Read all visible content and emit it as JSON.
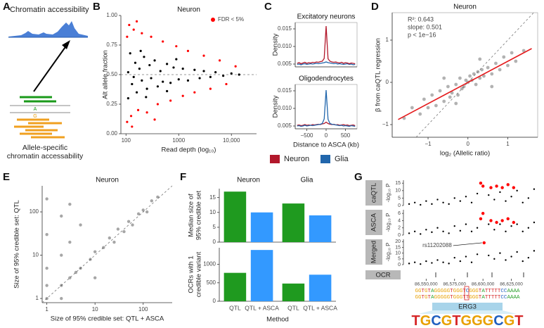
{
  "panel_labels": [
    "A",
    "B",
    "C",
    "D",
    "E",
    "F",
    "G"
  ],
  "diagram": {
    "title": "Chromatin accessibility",
    "alleles": [
      "A",
      "G"
    ],
    "caption": [
      "Allele-specific",
      "chromatin accessability"
    ]
  },
  "chart_data": [
    {
      "type": "scatter",
      "title": "Neuron",
      "xlabel": "Read depth (log₁₀)",
      "ylabel": "Alt allele fraction",
      "xlog": true,
      "xlim": [
        80,
        30000
      ],
      "xticks": [
        100,
        1000,
        {
          "value": 10000,
          "label": "10,000"
        }
      ],
      "ylim": [
        0,
        1
      ],
      "yticks": [
        {
          "value": 0,
          "label": "0.00"
        },
        0.25,
        {
          "value": 0.5,
          "label": "0.50"
        },
        0.75,
        {
          "value": 1,
          "label": "1.00"
        }
      ],
      "reference_line": 0.5,
      "series": [
        {
          "color": "#000000",
          "opacity": 1,
          "x": [
            110,
            120,
            130,
            150,
            160,
            180,
            200,
            220,
            250,
            280,
            300,
            350,
            400,
            450,
            500,
            600,
            700,
            800,
            1000,
            1200,
            1500,
            2000,
            2500,
            3000,
            4000,
            5000,
            7000,
            10000,
            14000,
            110,
            140,
            190,
            240,
            600,
            900
          ],
          "values": [
            0.3,
            0.68,
            0.42,
            0.6,
            0.35,
            0.55,
            0.45,
            0.65,
            0.38,
            0.58,
            0.47,
            0.62,
            0.4,
            0.53,
            0.44,
            0.59,
            0.43,
            0.56,
            0.46,
            0.55,
            0.45,
            0.54,
            0.47,
            0.53,
            0.48,
            0.52,
            0.49,
            0.51,
            0.5,
            0.52,
            0.48,
            0.7,
            0.31,
            0.36,
            0.63
          ]
        },
        {
          "name": "FDR < 5%",
          "color": "#ff0000",
          "opacity": 1,
          "x": [
            105,
            115,
            125,
            140,
            170,
            200,
            250,
            300,
            400,
            500,
            700,
            900,
            1200,
            1500,
            2000,
            3000,
            4000,
            6000,
            8000,
            12000,
            105,
            130,
            160,
            350
          ],
          "values": [
            0.1,
            0.92,
            0.15,
            0.88,
            0.2,
            0.85,
            0.18,
            0.82,
            0.25,
            0.78,
            0.28,
            0.74,
            0.32,
            0.7,
            0.35,
            0.66,
            0.38,
            0.62,
            0.42,
            0.57,
            0.82,
            0.06,
            0.95,
            0.12
          ]
        }
      ]
    },
    {
      "type": "line",
      "title": "Excitatory neurons",
      "ylabel": "Density",
      "xlim": [
        -800,
        800
      ],
      "ylim": [
        0.0042,
        0.0168
      ],
      "yticks": [
        0.005,
        {
          "value": 0.01,
          "label": "0.010"
        },
        0.015
      ],
      "x": [
        -750,
        -700,
        -650,
        -600,
        -550,
        -500,
        -450,
        -400,
        -350,
        -300,
        -250,
        -200,
        -150,
        -100,
        -50,
        0,
        50,
        100,
        150,
        200,
        250,
        300,
        350,
        400,
        450,
        500,
        550,
        600,
        650,
        700,
        750
      ],
      "series": [
        {
          "color": "#2166ac",
          "values": [
            0.0049,
            0.005,
            0.0048,
            0.005,
            0.0051,
            0.0049,
            0.005,
            0.0051,
            0.005,
            0.0051,
            0.0052,
            0.0051,
            0.0052,
            0.0053,
            0.0054,
            0.0056,
            0.0054,
            0.0053,
            0.0052,
            0.0051,
            0.0052,
            0.005,
            0.0051,
            0.005,
            0.0049,
            0.005,
            0.0051,
            0.0049,
            0.005,
            0.0048,
            0.0049
          ]
        },
        {
          "color": "#b2182b",
          "values": [
            0.0052,
            0.0054,
            0.0051,
            0.0053,
            0.0055,
            0.0052,
            0.0054,
            0.0053,
            0.0055,
            0.0054,
            0.0056,
            0.0055,
            0.0057,
            0.0058,
            0.0066,
            0.0158,
            0.0065,
            0.0058,
            0.0056,
            0.0055,
            0.0056,
            0.0054,
            0.0053,
            0.0055,
            0.0052,
            0.0054,
            0.0053,
            0.0051,
            0.0053,
            0.0052,
            0.0051
          ]
        }
      ]
    },
    {
      "type": "line",
      "title": "Oligodendrocytes",
      "ylabel": "Density",
      "xlabel": "Distance to ASCA (kb)",
      "xlim": [
        -800,
        800
      ],
      "xticks": [
        {
          "value": -500,
          "label": "−500"
        },
        0,
        500
      ],
      "ylim": [
        0.0042,
        0.0168
      ],
      "yticks": [
        0.005,
        {
          "value": 0.01,
          "label": "0.010"
        },
        0.015
      ],
      "legend": "bottom",
      "x": [
        -750,
        -700,
        -650,
        -600,
        -550,
        -500,
        -450,
        -400,
        -350,
        -300,
        -250,
        -200,
        -150,
        -100,
        -50,
        0,
        50,
        100,
        150,
        200,
        250,
        300,
        350,
        400,
        450,
        500,
        550,
        600,
        650,
        700,
        750
      ],
      "series": [
        {
          "name": "Neuron",
          "color": "#b2182b",
          "values": [
            0.0052,
            0.0053,
            0.0051,
            0.0052,
            0.0054,
            0.0052,
            0.0053,
            0.0052,
            0.0054,
            0.0053,
            0.0054,
            0.0055,
            0.0054,
            0.0056,
            0.0057,
            0.0061,
            0.0057,
            0.0055,
            0.0054,
            0.0055,
            0.0053,
            0.0054,
            0.0052,
            0.0053,
            0.0054,
            0.0052,
            0.0053,
            0.0051,
            0.0052,
            0.0053,
            0.0051
          ]
        },
        {
          "name": "Glia",
          "color": "#2166ac",
          "values": [
            0.005,
            0.0051,
            0.0049,
            0.005,
            0.0052,
            0.005,
            0.0051,
            0.0052,
            0.0051,
            0.0052,
            0.0053,
            0.0054,
            0.0055,
            0.0057,
            0.007,
            0.0152,
            0.0069,
            0.0057,
            0.0055,
            0.0054,
            0.0053,
            0.0052,
            0.0051,
            0.0052,
            0.005,
            0.0051,
            0.005,
            0.0049,
            0.0051,
            0.005,
            0.0049
          ]
        }
      ]
    },
    {
      "type": "scatter",
      "title": "Neuron",
      "xlabel": "log₂ (Allelic ratio)",
      "ylabel": "β from caQTL regression",
      "xlim": [
        -1.9,
        1.75
      ],
      "xticks": [
        {
          "value": -1,
          "label": "−1"
        },
        0,
        1
      ],
      "ylim": [
        -1.3,
        1.65
      ],
      "yticks": [
        {
          "value": -1,
          "label": "−1"
        },
        0,
        1
      ],
      "diagonal": true,
      "annotations": [
        "R²: 0.643",
        "slope: 0.501",
        "p < 1e−16"
      ],
      "series": [
        {
          "color": "#555555",
          "opacity": 0.45,
          "x": [
            -1.6,
            -1.4,
            -1.2,
            -1.1,
            -1.0,
            -0.9,
            -0.8,
            -0.7,
            -0.6,
            -0.5,
            -0.45,
            -0.4,
            -0.3,
            -0.25,
            -0.2,
            -0.15,
            -0.1,
            -0.05,
            0.0,
            0.05,
            0.1,
            0.15,
            0.2,
            0.25,
            0.3,
            0.35,
            0.4,
            0.5,
            0.6,
            0.7,
            0.8,
            0.9,
            1.0,
            1.1,
            1.2,
            1.4,
            -0.3,
            0.3,
            -0.6,
            0.6
          ],
          "values": [
            -0.85,
            -0.6,
            -0.75,
            -0.4,
            -0.6,
            -0.3,
            -0.55,
            -0.2,
            -0.45,
            -0.1,
            -0.35,
            -0.25,
            -0.05,
            -0.3,
            0.1,
            -0.15,
            -0.1,
            0.05,
            0.0,
            0.15,
            0.05,
            0.2,
            -0.05,
            0.25,
            0.1,
            0.3,
            0.15,
            0.35,
            0.2,
            0.45,
            0.3,
            0.6,
            0.4,
            0.7,
            0.5,
            0.75,
            -0.5,
            0.55,
            0.1,
            -0.1
          ]
        },
        {
          "color": "#e41a1c",
          "mode": "line",
          "x": [
            -1.75,
            1.6
          ],
          "values": [
            -0.88,
            0.8
          ]
        }
      ]
    },
    {
      "type": "scatter",
      "title": "Neuron",
      "xlabel": "Size of 95% credible set: QTL + ASCA",
      "ylabel": "Size of 95% credible set: QTL",
      "xlog": true,
      "ylog": true,
      "xlim": [
        0.8,
        400
      ],
      "xticks": [
        1,
        10,
        100
      ],
      "ylim": [
        0.8,
        400
      ],
      "yticks": [
        1,
        10,
        100
      ],
      "diagonal": true,
      "series": [
        {
          "color": "#000000",
          "opacity": 0.35,
          "x": [
            1,
            1,
            1,
            1,
            2,
            2,
            2,
            3,
            3,
            4,
            5,
            5,
            8,
            10,
            10,
            15,
            20,
            25,
            30,
            40,
            50,
            60,
            80,
            100,
            120,
            150,
            200,
            2,
            3,
            1
          ],
          "values": [
            1,
            2,
            5,
            30,
            2,
            10,
            1,
            3,
            20,
            4,
            5,
            50,
            8,
            12,
            3,
            15,
            25,
            20,
            40,
            35,
            60,
            50,
            90,
            110,
            100,
            180,
            220,
            80,
            150,
            200
          ]
        }
      ]
    },
    {
      "type": "bar",
      "facets": [
        "Neuron",
        "Glia"
      ],
      "categories": [
        "QTL",
        "QTL + ASCA"
      ],
      "colors": [
        "#1f9a1f",
        "#3399ff"
      ],
      "xlabel": "Method",
      "rows": [
        {
          "ylabel": [
            "Median size of",
            "95% credible set"
          ],
          "ylim": [
            0,
            18
          ],
          "yticks": [
            0,
            5,
            10,
            15
          ],
          "values": [
            [
              17,
              10
            ],
            [
              13,
              9
            ]
          ]
        },
        {
          "ylabel": [
            "OCRs with 1",
            "credible variant"
          ],
          "ylim": [
            0,
            1450
          ],
          "yticks": [
            0,
            500,
            1000
          ],
          "values": [
            [
              770,
              1390
            ],
            [
              480,
              720
            ]
          ]
        }
      ]
    },
    {
      "type": "locus",
      "xlim": [
        86530000,
        86650000
      ],
      "xticks": [
        {
          "value": 86550000,
          "label": "86,550,000"
        },
        {
          "value": 86575000,
          "label": "86,575,000"
        },
        {
          "value": 86600000,
          "label": "86,600,000"
        },
        {
          "value": 86625000,
          "label": "86,625,000"
        }
      ],
      "x": [
        86535000,
        86540000,
        86545000,
        86550000,
        86555000,
        86560000,
        86565000,
        86570000,
        86575000,
        86580000,
        86585000,
        86590000,
        86595000,
        86605000,
        86610000,
        86615000,
        86620000,
        86625000,
        86630000,
        86635000,
        86640000,
        86645000
      ],
      "tracks": [
        {
          "label": "caQTL",
          "ylabel": "-log₁₀ P",
          "ylim": [
            0,
            17
          ],
          "yticks": [
            0,
            5,
            10,
            15
          ],
          "series": [
            {
              "color": "#000000",
              "values": [
                1,
                2,
                0.5,
                3,
                1,
                4,
                2,
                1,
                5,
                3,
                6,
                2,
                8,
                7,
                4,
                9,
                3,
                6,
                10,
                2,
                5,
                11
              ]
            },
            {
              "color": "#ff0000",
              "x": [
                86598000,
                86600000,
                86607000,
                86612000,
                86617000,
                86622000,
                86627000
              ],
              "values": [
                15,
                13,
                12,
                13,
                12,
                14,
                12
              ]
            }
          ]
        },
        {
          "label": "ASCA",
          "ylabel": "-log₁₀ P",
          "ylim": [
            0,
            7
          ],
          "yticks": [
            0,
            2,
            4,
            6
          ],
          "series": [
            {
              "color": "#000000",
              "values": [
                0.5,
                1,
                0.3,
                1.5,
                0.8,
                2,
                1,
                0.5,
                2.5,
                1.2,
                3,
                1,
                2,
                3,
                1.5,
                3,
                1,
                2.5,
                3,
                1,
                2,
                3.5
              ]
            },
            {
              "color": "#ff0000",
              "x": [
                86598000,
                86600000,
                86607000,
                86612000,
                86617000,
                86622000,
                86627000
              ],
              "values": [
                4.5,
                6,
                4,
                3.5,
                4,
                4.5,
                3.5
              ]
            }
          ]
        },
        {
          "label": "Merged",
          "ylabel": "-log₁₀ P",
          "ylim": [
            0,
            22
          ],
          "yticks": [
            0,
            5,
            10,
            15,
            20
          ],
          "annotation": "rs11202088",
          "series": [
            {
              "color": "#000000",
              "values": [
                1,
                2,
                0.5,
                3,
                1.5,
                4,
                2,
                1,
                6,
                3,
                7,
                2,
                9,
                8,
                5,
                10,
                4,
                7,
                11,
                3,
                6,
                12
              ]
            },
            {
              "color": "#ff0000",
              "x": [
                86601000
              ],
              "values": [
                19
              ]
            }
          ]
        }
      ],
      "ocr_label": "OCR",
      "sequences": [
        "GGTGTAGGGGGTGGGTCGGGTATTTTTCCAAAA",
        "GGTGTAGGGGGTGGGTTGGGTATTTTTCCAAAA"
      ],
      "motif_name": "ERG3",
      "motif": "TGCGTGGGCGT"
    }
  ]
}
